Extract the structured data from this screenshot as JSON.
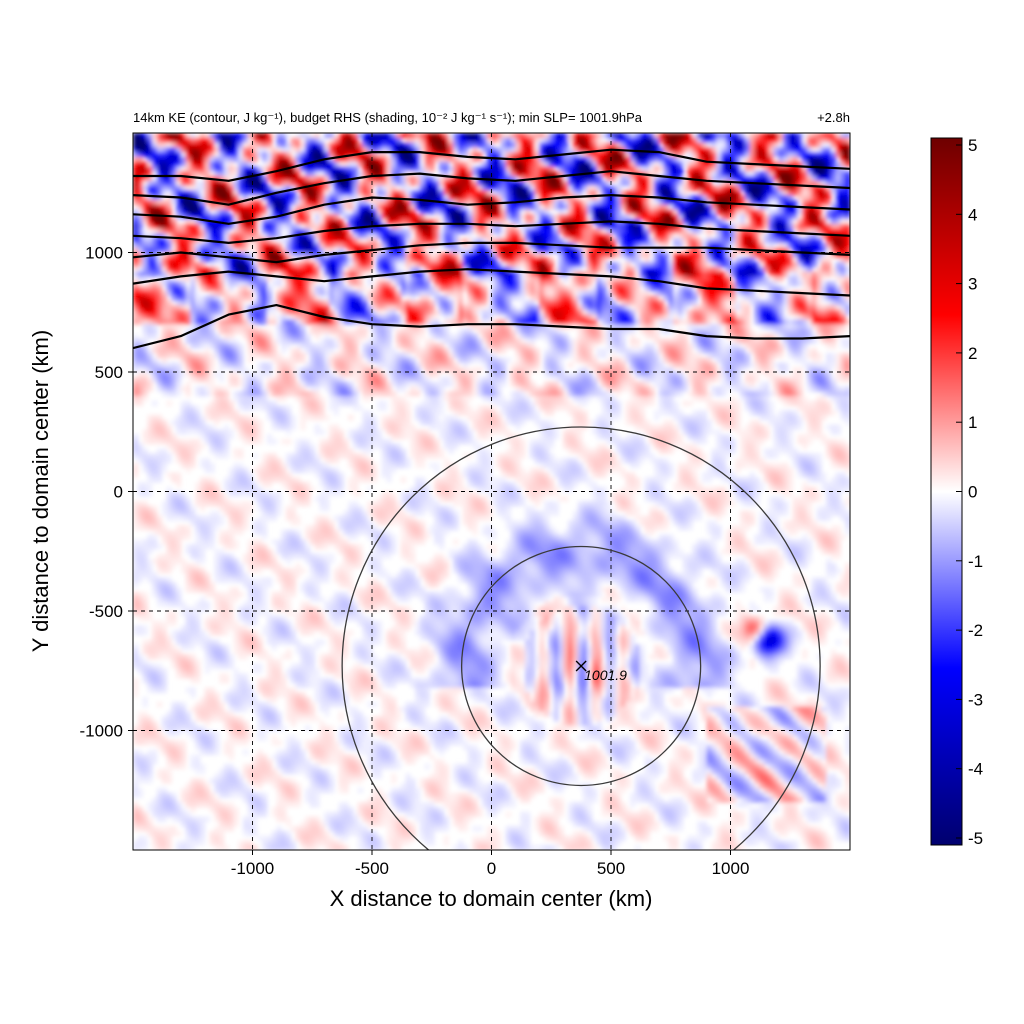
{
  "chart_data": {
    "type": "heatmap",
    "title_left": "14km KE (contour, J kg⁻¹), budget RHS (shading, 10⁻² J kg⁻¹ s⁻¹); min SLP= 1001.9hPa",
    "title_right": "+2.8h",
    "xlabel": "X distance to domain center (km)",
    "ylabel": "Y distance to domain center (km)",
    "xlim": [
      -1500,
      1500
    ],
    "ylim": [
      -1500,
      1500
    ],
    "xticks": [
      -1000,
      -500,
      0,
      500,
      1000
    ],
    "yticks": [
      -1000,
      -500,
      0,
      500,
      1000
    ],
    "grid": "dashed",
    "colorbar": {
      "ticks": [
        -5,
        -4,
        -3,
        -2,
        -1,
        0,
        1,
        2,
        3,
        4,
        5
      ],
      "range": [
        -5,
        5
      ],
      "colors": [
        "#00006e",
        "#0000ff",
        "#ffffff",
        "#ff0000",
        "#6e0000"
      ]
    },
    "center": {
      "x": 375,
      "y": -730,
      "label": "1001.9"
    },
    "range_circles_km": [
      500,
      1000
    ],
    "ke_contours": [
      {
        "level": 1,
        "points": [
          [
            -1500,
            600
          ],
          [
            -1300,
            650
          ],
          [
            -1100,
            740
          ],
          [
            -900,
            780
          ],
          [
            -700,
            730
          ],
          [
            -500,
            700
          ],
          [
            -300,
            690
          ],
          [
            -100,
            700
          ],
          [
            100,
            700
          ],
          [
            300,
            690
          ],
          [
            500,
            680
          ],
          [
            700,
            680
          ],
          [
            900,
            650
          ],
          [
            1100,
            640
          ],
          [
            1300,
            640
          ],
          [
            1500,
            650
          ]
        ]
      },
      {
        "level": 2,
        "points": [
          [
            -1500,
            870
          ],
          [
            -1300,
            900
          ],
          [
            -1100,
            920
          ],
          [
            -900,
            900
          ],
          [
            -700,
            880
          ],
          [
            -500,
            900
          ],
          [
            -300,
            920
          ],
          [
            -100,
            930
          ],
          [
            100,
            920
          ],
          [
            300,
            910
          ],
          [
            500,
            900
          ],
          [
            700,
            880
          ],
          [
            900,
            850
          ],
          [
            1100,
            840
          ],
          [
            1300,
            830
          ],
          [
            1500,
            820
          ]
        ]
      },
      {
        "level": 3,
        "points": [
          [
            -1500,
            980
          ],
          [
            -1300,
            1000
          ],
          [
            -1100,
            980
          ],
          [
            -900,
            960
          ],
          [
            -700,
            990
          ],
          [
            -500,
            1010
          ],
          [
            -300,
            1030
          ],
          [
            -100,
            1040
          ],
          [
            100,
            1040
          ],
          [
            300,
            1030
          ],
          [
            500,
            1020
          ],
          [
            700,
            1020
          ],
          [
            900,
            1020
          ],
          [
            1100,
            1010
          ],
          [
            1300,
            1000
          ],
          [
            1500,
            990
          ]
        ]
      },
      {
        "level": 4,
        "points": [
          [
            -1500,
            1070
          ],
          [
            -1300,
            1060
          ],
          [
            -1100,
            1040
          ],
          [
            -900,
            1060
          ],
          [
            -700,
            1090
          ],
          [
            -500,
            1110
          ],
          [
            -300,
            1120
          ],
          [
            -100,
            1120
          ],
          [
            100,
            1110
          ],
          [
            300,
            1120
          ],
          [
            500,
            1130
          ],
          [
            700,
            1120
          ],
          [
            900,
            1100
          ],
          [
            1100,
            1090
          ],
          [
            1300,
            1080
          ],
          [
            1500,
            1070
          ]
        ]
      },
      {
        "level": 5,
        "points": [
          [
            -1500,
            1160
          ],
          [
            -1300,
            1150
          ],
          [
            -1100,
            1120
          ],
          [
            -900,
            1150
          ],
          [
            -700,
            1200
          ],
          [
            -500,
            1230
          ],
          [
            -300,
            1220
          ],
          [
            -100,
            1200
          ],
          [
            100,
            1210
          ],
          [
            300,
            1230
          ],
          [
            500,
            1240
          ],
          [
            700,
            1230
          ],
          [
            900,
            1210
          ],
          [
            1100,
            1200
          ],
          [
            1300,
            1190
          ],
          [
            1500,
            1180
          ]
        ]
      },
      {
        "level": 6,
        "points": [
          [
            -1500,
            1240
          ],
          [
            -1300,
            1230
          ],
          [
            -1100,
            1200
          ],
          [
            -900,
            1250
          ],
          [
            -700,
            1290
          ],
          [
            -500,
            1320
          ],
          [
            -300,
            1330
          ],
          [
            -100,
            1310
          ],
          [
            100,
            1300
          ],
          [
            300,
            1320
          ],
          [
            500,
            1340
          ],
          [
            700,
            1320
          ],
          [
            900,
            1300
          ],
          [
            1100,
            1290
          ],
          [
            1300,
            1280
          ],
          [
            1500,
            1270
          ]
        ]
      },
      {
        "level": 7,
        "points": [
          [
            -1500,
            1320
          ],
          [
            -1300,
            1320
          ],
          [
            -1100,
            1300
          ],
          [
            -900,
            1340
          ],
          [
            -700,
            1390
          ],
          [
            -500,
            1420
          ],
          [
            -300,
            1420
          ],
          [
            -100,
            1400
          ],
          [
            100,
            1390
          ],
          [
            300,
            1410
          ],
          [
            500,
            1430
          ],
          [
            700,
            1420
          ],
          [
            900,
            1380
          ],
          [
            1100,
            1370
          ],
          [
            1300,
            1360
          ],
          [
            1500,
            1350
          ]
        ]
      }
    ]
  }
}
